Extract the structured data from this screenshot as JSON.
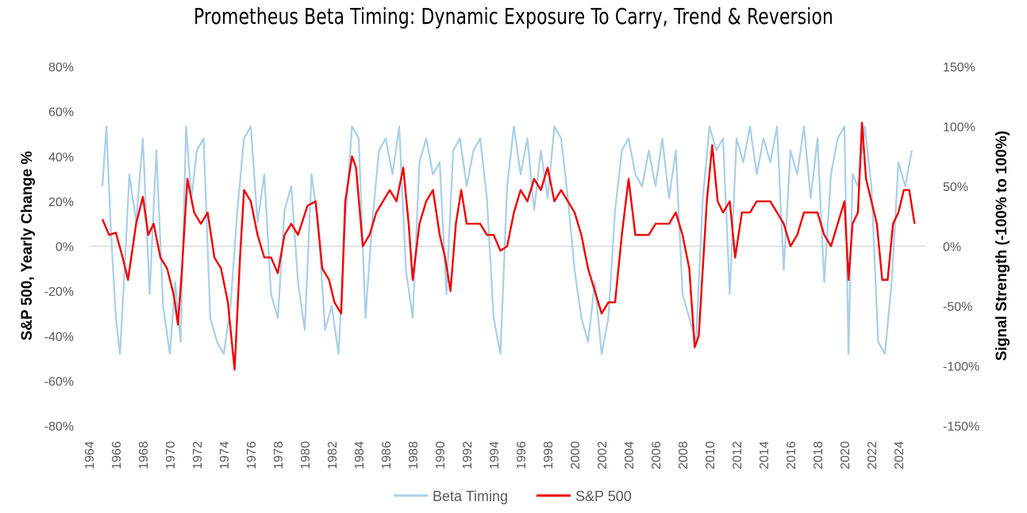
{
  "colors": {
    "beta_timing": "#a9cfe8",
    "sp500": "#ee0000",
    "zero_line": "#d9d9d9",
    "tick_text": "#595959"
  },
  "chart_data": {
    "type": "line",
    "title": "Prometheus Beta Timing: Dynamic Exposure To Carry, Trend & Reversion",
    "ylabel_left": "S&P 500, Yearly Change %",
    "ylabel_right": "Signal Strength (-100% to 100%)",
    "ylim_left": [
      -0.8,
      0.8
    ],
    "ylim_right": [
      -1.5,
      1.5
    ],
    "y_ticks_left": [
      "-80%",
      "-60%",
      "-40%",
      "-20%",
      "0%",
      "20%",
      "40%",
      "60%",
      "80%"
    ],
    "y_ticks_right": [
      "-150%",
      "-100%",
      "-50%",
      "0%",
      "50%",
      "100%",
      "150%"
    ],
    "x_ticks": [
      "1964",
      "1966",
      "1968",
      "1970",
      "1972",
      "1974",
      "1976",
      "1978",
      "1980",
      "1982",
      "1984",
      "1986",
      "1988",
      "1990",
      "1992",
      "1994",
      "1996",
      "1998",
      "2000",
      "2002",
      "2004",
      "2006",
      "2008",
      "2010",
      "2012",
      "2014",
      "2016",
      "2018",
      "2020",
      "2022",
      "2024"
    ],
    "xlim": [
      1964,
      2026
    ],
    "grid": false,
    "legend_position": "bottom",
    "series": [
      {
        "name": "Beta Timing",
        "axis": "right",
        "x": [
          1965.0,
          1965.3,
          1965.6,
          1966.0,
          1966.3,
          1966.6,
          1967.0,
          1967.5,
          1968.0,
          1968.5,
          1969.0,
          1969.5,
          1970.0,
          1970.4,
          1970.8,
          1971.2,
          1971.6,
          1972.0,
          1972.5,
          1973.0,
          1973.5,
          1974.0,
          1974.5,
          1975.0,
          1975.5,
          1976.0,
          1976.5,
          1977.0,
          1977.5,
          1978.0,
          1978.5,
          1979.0,
          1979.5,
          1980.0,
          1980.5,
          1981.0,
          1981.5,
          1982.0,
          1982.5,
          1983.0,
          1983.5,
          1984.0,
          1984.5,
          1985.0,
          1985.5,
          1986.0,
          1986.5,
          1987.0,
          1987.5,
          1988.0,
          1988.5,
          1989.0,
          1989.5,
          1990.0,
          1990.5,
          1991.0,
          1991.5,
          1992.0,
          1992.5,
          1993.0,
          1993.5,
          1994.0,
          1994.5,
          1995.0,
          1995.5,
          1996.0,
          1996.5,
          1997.0,
          1997.5,
          1998.0,
          1998.5,
          1999.0,
          1999.5,
          2000.0,
          2000.5,
          2001.0,
          2001.5,
          2002.0,
          2002.5,
          2003.0,
          2003.5,
          2004.0,
          2004.5,
          2005.0,
          2005.5,
          2006.0,
          2006.5,
          2007.0,
          2007.5,
          2008.0,
          2008.5,
          2009.0,
          2009.5,
          2010.0,
          2010.5,
          2011.0,
          2011.5,
          2012.0,
          2012.5,
          2013.0,
          2013.5,
          2014.0,
          2014.5,
          2015.0,
          2015.5,
          2016.0,
          2016.5,
          2017.0,
          2017.5,
          2018.0,
          2018.5,
          2019.0,
          2019.5,
          2020.0,
          2020.3,
          2020.6,
          2021.0,
          2021.5,
          2022.0,
          2022.5,
          2023.0,
          2023.5,
          2024.0,
          2024.5,
          2025.0
        ],
        "values": [
          0.5,
          1.0,
          0.2,
          -0.6,
          -0.9,
          -0.3,
          0.6,
          0.2,
          0.9,
          -0.4,
          0.8,
          -0.5,
          -0.9,
          -0.3,
          -0.8,
          1.0,
          0.4,
          0.8,
          0.9,
          -0.6,
          -0.8,
          -0.9,
          -0.5,
          0.3,
          0.9,
          1.0,
          0.2,
          0.6,
          -0.4,
          -0.6,
          0.3,
          0.5,
          -0.3,
          -0.7,
          0.6,
          0.2,
          -0.7,
          -0.5,
          -0.9,
          0.2,
          1.0,
          0.9,
          -0.6,
          0.2,
          0.8,
          0.9,
          0.6,
          1.0,
          -0.2,
          -0.6,
          0.7,
          0.9,
          0.6,
          0.7,
          -0.4,
          0.8,
          0.9,
          0.5,
          0.8,
          0.9,
          0.4,
          -0.6,
          -0.9,
          0.5,
          1.0,
          0.6,
          0.9,
          0.3,
          0.8,
          0.4,
          1.0,
          0.9,
          0.4,
          -0.2,
          -0.6,
          -0.8,
          -0.3,
          -0.9,
          -0.6,
          0.3,
          0.8,
          0.9,
          0.6,
          0.5,
          0.8,
          0.5,
          0.9,
          0.4,
          0.8,
          -0.4,
          -0.6,
          -0.8,
          0.4,
          1.0,
          0.8,
          0.9,
          -0.4,
          0.9,
          0.7,
          1.0,
          0.6,
          0.9,
          0.7,
          1.0,
          -0.2,
          0.8,
          0.6,
          1.0,
          0.4,
          0.9,
          -0.3,
          0.6,
          0.9,
          1.0,
          -0.9,
          0.6,
          0.5,
          1.0,
          0.5,
          -0.8,
          -0.9,
          -0.3,
          0.7,
          0.5,
          0.8
        ]
      },
      {
        "name": "S&P 500",
        "axis": "left",
        "x": [
          1965.0,
          1965.5,
          1966.0,
          1966.5,
          1966.9,
          1967.5,
          1968.0,
          1968.4,
          1968.8,
          1969.3,
          1969.8,
          1970.3,
          1970.6,
          1970.9,
          1971.3,
          1971.8,
          1972.3,
          1972.8,
          1973.3,
          1973.8,
          1974.3,
          1974.8,
          1975.2,
          1975.5,
          1976.0,
          1976.5,
          1977.0,
          1977.5,
          1978.0,
          1978.5,
          1979.0,
          1979.5,
          1980.2,
          1980.8,
          1981.3,
          1981.8,
          1982.2,
          1982.7,
          1983.0,
          1983.5,
          1983.8,
          1984.3,
          1984.8,
          1985.3,
          1985.8,
          1986.3,
          1986.8,
          1987.3,
          1987.7,
          1988.0,
          1988.5,
          1989.0,
          1989.5,
          1990.0,
          1990.4,
          1990.8,
          1991.2,
          1991.6,
          1992.0,
          1992.5,
          1993.0,
          1993.5,
          1994.0,
          1994.5,
          1995.0,
          1995.5,
          1996.0,
          1996.5,
          1997.0,
          1997.5,
          1998.0,
          1998.5,
          1999.0,
          1999.5,
          2000.0,
          2000.5,
          2001.0,
          2001.5,
          2002.0,
          2002.5,
          2003.0,
          2003.5,
          2004.0,
          2004.5,
          2005.0,
          2005.5,
          2006.0,
          2006.5,
          2007.0,
          2007.5,
          2008.0,
          2008.5,
          2008.9,
          2009.2,
          2009.5,
          2009.8,
          2010.2,
          2010.6,
          2011.0,
          2011.5,
          2011.9,
          2012.4,
          2013.0,
          2013.5,
          2014.0,
          2014.5,
          2015.0,
          2015.5,
          2016.0,
          2016.5,
          2017.0,
          2017.5,
          2018.0,
          2018.5,
          2019.0,
          2019.5,
          2020.0,
          2020.3,
          2020.6,
          2021.0,
          2021.3,
          2021.6,
          2022.0,
          2022.4,
          2022.8,
          2023.2,
          2023.6,
          2024.0,
          2024.4,
          2024.8,
          2025.2
        ],
        "values": [
          0.12,
          0.05,
          0.06,
          -0.05,
          -0.15,
          0.1,
          0.22,
          0.05,
          0.1,
          -0.05,
          -0.1,
          -0.22,
          -0.35,
          -0.1,
          0.3,
          0.15,
          0.1,
          0.15,
          -0.05,
          -0.1,
          -0.25,
          -0.55,
          -0.05,
          0.25,
          0.2,
          0.05,
          -0.05,
          -0.05,
          -0.12,
          0.05,
          0.1,
          0.05,
          0.18,
          0.2,
          -0.1,
          -0.15,
          -0.25,
          -0.3,
          0.2,
          0.4,
          0.35,
          0.0,
          0.05,
          0.15,
          0.2,
          0.25,
          0.2,
          0.35,
          0.1,
          -0.15,
          0.1,
          0.2,
          0.25,
          0.05,
          -0.05,
          -0.2,
          0.1,
          0.25,
          0.1,
          0.1,
          0.1,
          0.05,
          0.05,
          -0.02,
          0.0,
          0.15,
          0.25,
          0.2,
          0.3,
          0.25,
          0.35,
          0.2,
          0.25,
          0.2,
          0.15,
          0.05,
          -0.1,
          -0.2,
          -0.3,
          -0.25,
          -0.25,
          0.05,
          0.3,
          0.05,
          0.05,
          0.05,
          0.1,
          0.1,
          0.1,
          0.15,
          0.05,
          -0.1,
          -0.45,
          -0.4,
          -0.1,
          0.2,
          0.45,
          0.2,
          0.15,
          0.2,
          -0.05,
          0.15,
          0.15,
          0.2,
          0.2,
          0.2,
          0.15,
          0.1,
          0.0,
          0.05,
          0.15,
          0.15,
          0.15,
          0.05,
          0.0,
          0.1,
          0.2,
          -0.15,
          0.1,
          0.15,
          0.55,
          0.3,
          0.2,
          0.1,
          -0.15,
          -0.15,
          0.1,
          0.15,
          0.25,
          0.25,
          0.1
        ]
      }
    ]
  }
}
